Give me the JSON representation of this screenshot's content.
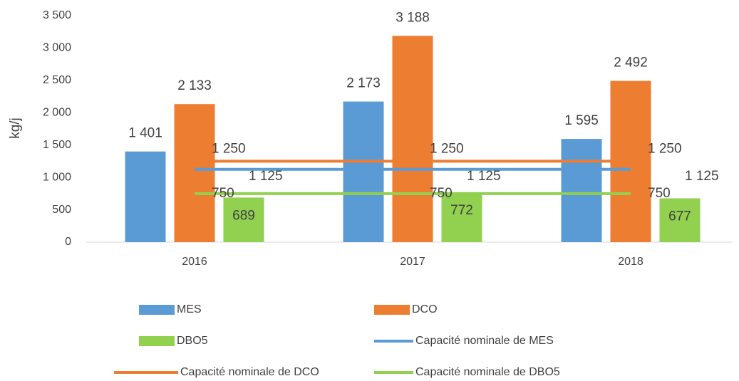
{
  "chart_data": {
    "type": "bar",
    "y_label": "kg/j",
    "categories": [
      "2016",
      "2017",
      "2018"
    ],
    "ylim": [
      0,
      3500
    ],
    "yticks": [
      0,
      500,
      {
        "value": 1000,
        "label": "1 000"
      },
      {
        "value": 1500,
        "label": "1 500"
      },
      {
        "value": 2000,
        "label": "2 000"
      },
      {
        "value": 2500,
        "label": "2 500"
      },
      {
        "value": 3000,
        "label": "3 000"
      },
      {
        "value": 3500,
        "label": "3 500"
      }
    ],
    "series": [
      {
        "name": "MES",
        "type": "bar",
        "color": "#5b9bd5",
        "values": [
          1401,
          2173,
          1595
        ],
        "value_labels": [
          "1 401",
          "2 173",
          "1 595"
        ]
      },
      {
        "name": "DCO",
        "type": "bar",
        "color": "#ed7d31",
        "values": [
          2133,
          3188,
          2492
        ],
        "value_labels": [
          "2 133",
          "3 188",
          "2 492"
        ]
      },
      {
        "name": "DBO5",
        "type": "bar",
        "color": "#92d050",
        "values": [
          689,
          772,
          677
        ]
      },
      {
        "name": "Capacité nominale de MES",
        "type": "line",
        "color": "#5b9bd5",
        "values": [
          1125,
          1125,
          1125
        ],
        "value_labels": [
          "1 125",
          "1 125",
          "1 125"
        ]
      },
      {
        "name": "Capacité nominale de DCO",
        "type": "line",
        "color": "#ed7d31",
        "values": [
          1250,
          1250,
          1250
        ],
        "value_labels": [
          "1 250",
          "1 250",
          "1 250"
        ]
      },
      {
        "name": "Capacité nominale de DBO5",
        "type": "line",
        "color": "#92d050",
        "values": [
          750,
          750,
          750
        ]
      }
    ],
    "legend": "bottom"
  }
}
